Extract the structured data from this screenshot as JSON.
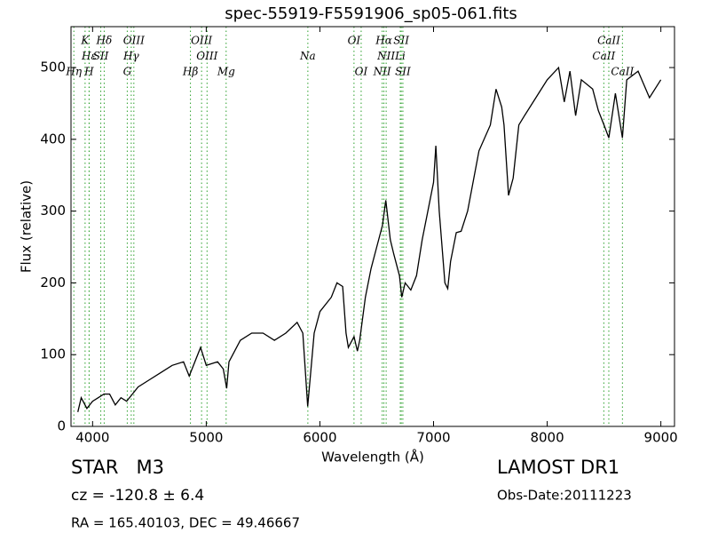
{
  "chart_data": {
    "type": "line",
    "title": "spec-55919-F5591906_sp05-061.fits",
    "xlabel": "Wavelength (Å)",
    "ylabel": "Flux (relative)",
    "xlim": [
      3810,
      9120
    ],
    "ylim": [
      0,
      557
    ],
    "xticks": [
      4000,
      5000,
      6000,
      7000,
      8000,
      9000
    ],
    "yticks": [
      0,
      100,
      200,
      300,
      400,
      500
    ],
    "color": "#000000",
    "line_color": "#2ca02c",
    "x": [
      3870,
      3900,
      3950,
      4000,
      4050,
      4100,
      4150,
      4200,
      4250,
      4300,
      4350,
      4400,
      4500,
      4600,
      4700,
      4800,
      4850,
      4900,
      4950,
      5000,
      5100,
      5150,
      5180,
      5200,
      5300,
      5400,
      5500,
      5600,
      5700,
      5800,
      5850,
      5893,
      5950,
      6000,
      6100,
      6150,
      6200,
      6230,
      6250,
      6300,
      6330,
      6350,
      6400,
      6450,
      6500,
      6550,
      6580,
      6620,
      6650,
      6700,
      6720,
      6750,
      6800,
      6850,
      6900,
      6950,
      7000,
      7020,
      7050,
      7100,
      7125,
      7150,
      7200,
      7243,
      7300,
      7400,
      7500,
      7550,
      7600,
      7620,
      7660,
      7700,
      7750,
      7800,
      7900,
      8000,
      8100,
      8150,
      8200,
      8250,
      8300,
      8400,
      8450,
      8500,
      8542,
      8600,
      8662,
      8700,
      8800,
      8900,
      9000
    ],
    "values": [
      20,
      40,
      25,
      35,
      40,
      45,
      45,
      30,
      40,
      35,
      45,
      55,
      65,
      75,
      85,
      90,
      70,
      90,
      110,
      85,
      90,
      80,
      53,
      90,
      120,
      130,
      130,
      120,
      130,
      145,
      130,
      28,
      130,
      160,
      180,
      200,
      195,
      130,
      110,
      125,
      105,
      120,
      180,
      220,
      250,
      280,
      315,
      260,
      240,
      210,
      180,
      200,
      190,
      210,
      260,
      300,
      340,
      391,
      300,
      200,
      192,
      230,
      270,
      272,
      300,
      384,
      420,
      470,
      445,
      420,
      322,
      346,
      420,
      433,
      458,
      483,
      500,
      452,
      495,
      433,
      483,
      470,
      440,
      420,
      402,
      464,
      402,
      483,
      495,
      458,
      483
    ],
    "lines": [
      {
        "label": "Hη",
        "wavelength": 3835
      },
      {
        "label": "Hε",
        "wavelength": 3970
      },
      {
        "label": "K",
        "wavelength": 3934
      },
      {
        "label": "H",
        "wavelength": 3969
      },
      {
        "label": "SII",
        "wavelength": 4072
      },
      {
        "label": "Hδ",
        "wavelength": 4102
      },
      {
        "label": "G",
        "wavelength": 4305
      },
      {
        "label": "Hγ",
        "wavelength": 4340
      },
      {
        "label": "OIII",
        "wavelength": 4363
      },
      {
        "label": "Hβ",
        "wavelength": 4861
      },
      {
        "label": "OIII",
        "wavelength": 4959
      },
      {
        "label": "OIII",
        "wavelength": 5007
      },
      {
        "label": "Mg",
        "wavelength": 5175
      },
      {
        "label": "Na",
        "wavelength": 5894
      },
      {
        "label": "OI",
        "wavelength": 6300
      },
      {
        "label": "OI",
        "wavelength": 6363
      },
      {
        "label": "NII",
        "wavelength": 6548
      },
      {
        "label": "Hα",
        "wavelength": 6563
      },
      {
        "label": "NII",
        "wavelength": 6583
      },
      {
        "label": "Li",
        "wavelength": 6707
      },
      {
        "label": "SII",
        "wavelength": 6716
      },
      {
        "label": "SII",
        "wavelength": 6730
      },
      {
        "label": "CaII",
        "wavelength": 8498
      },
      {
        "label": "CaII",
        "wavelength": 8542
      },
      {
        "label": "CaII",
        "wavelength": 8662
      }
    ],
    "annotations": {
      "object": "STAR   M3",
      "cz": "cz = -120.8 ± 6.4",
      "coords": "RA = 165.40103, DEC = 49.46667",
      "survey": "LAMOST DR1",
      "date": "Obs-Date:20111223"
    }
  }
}
